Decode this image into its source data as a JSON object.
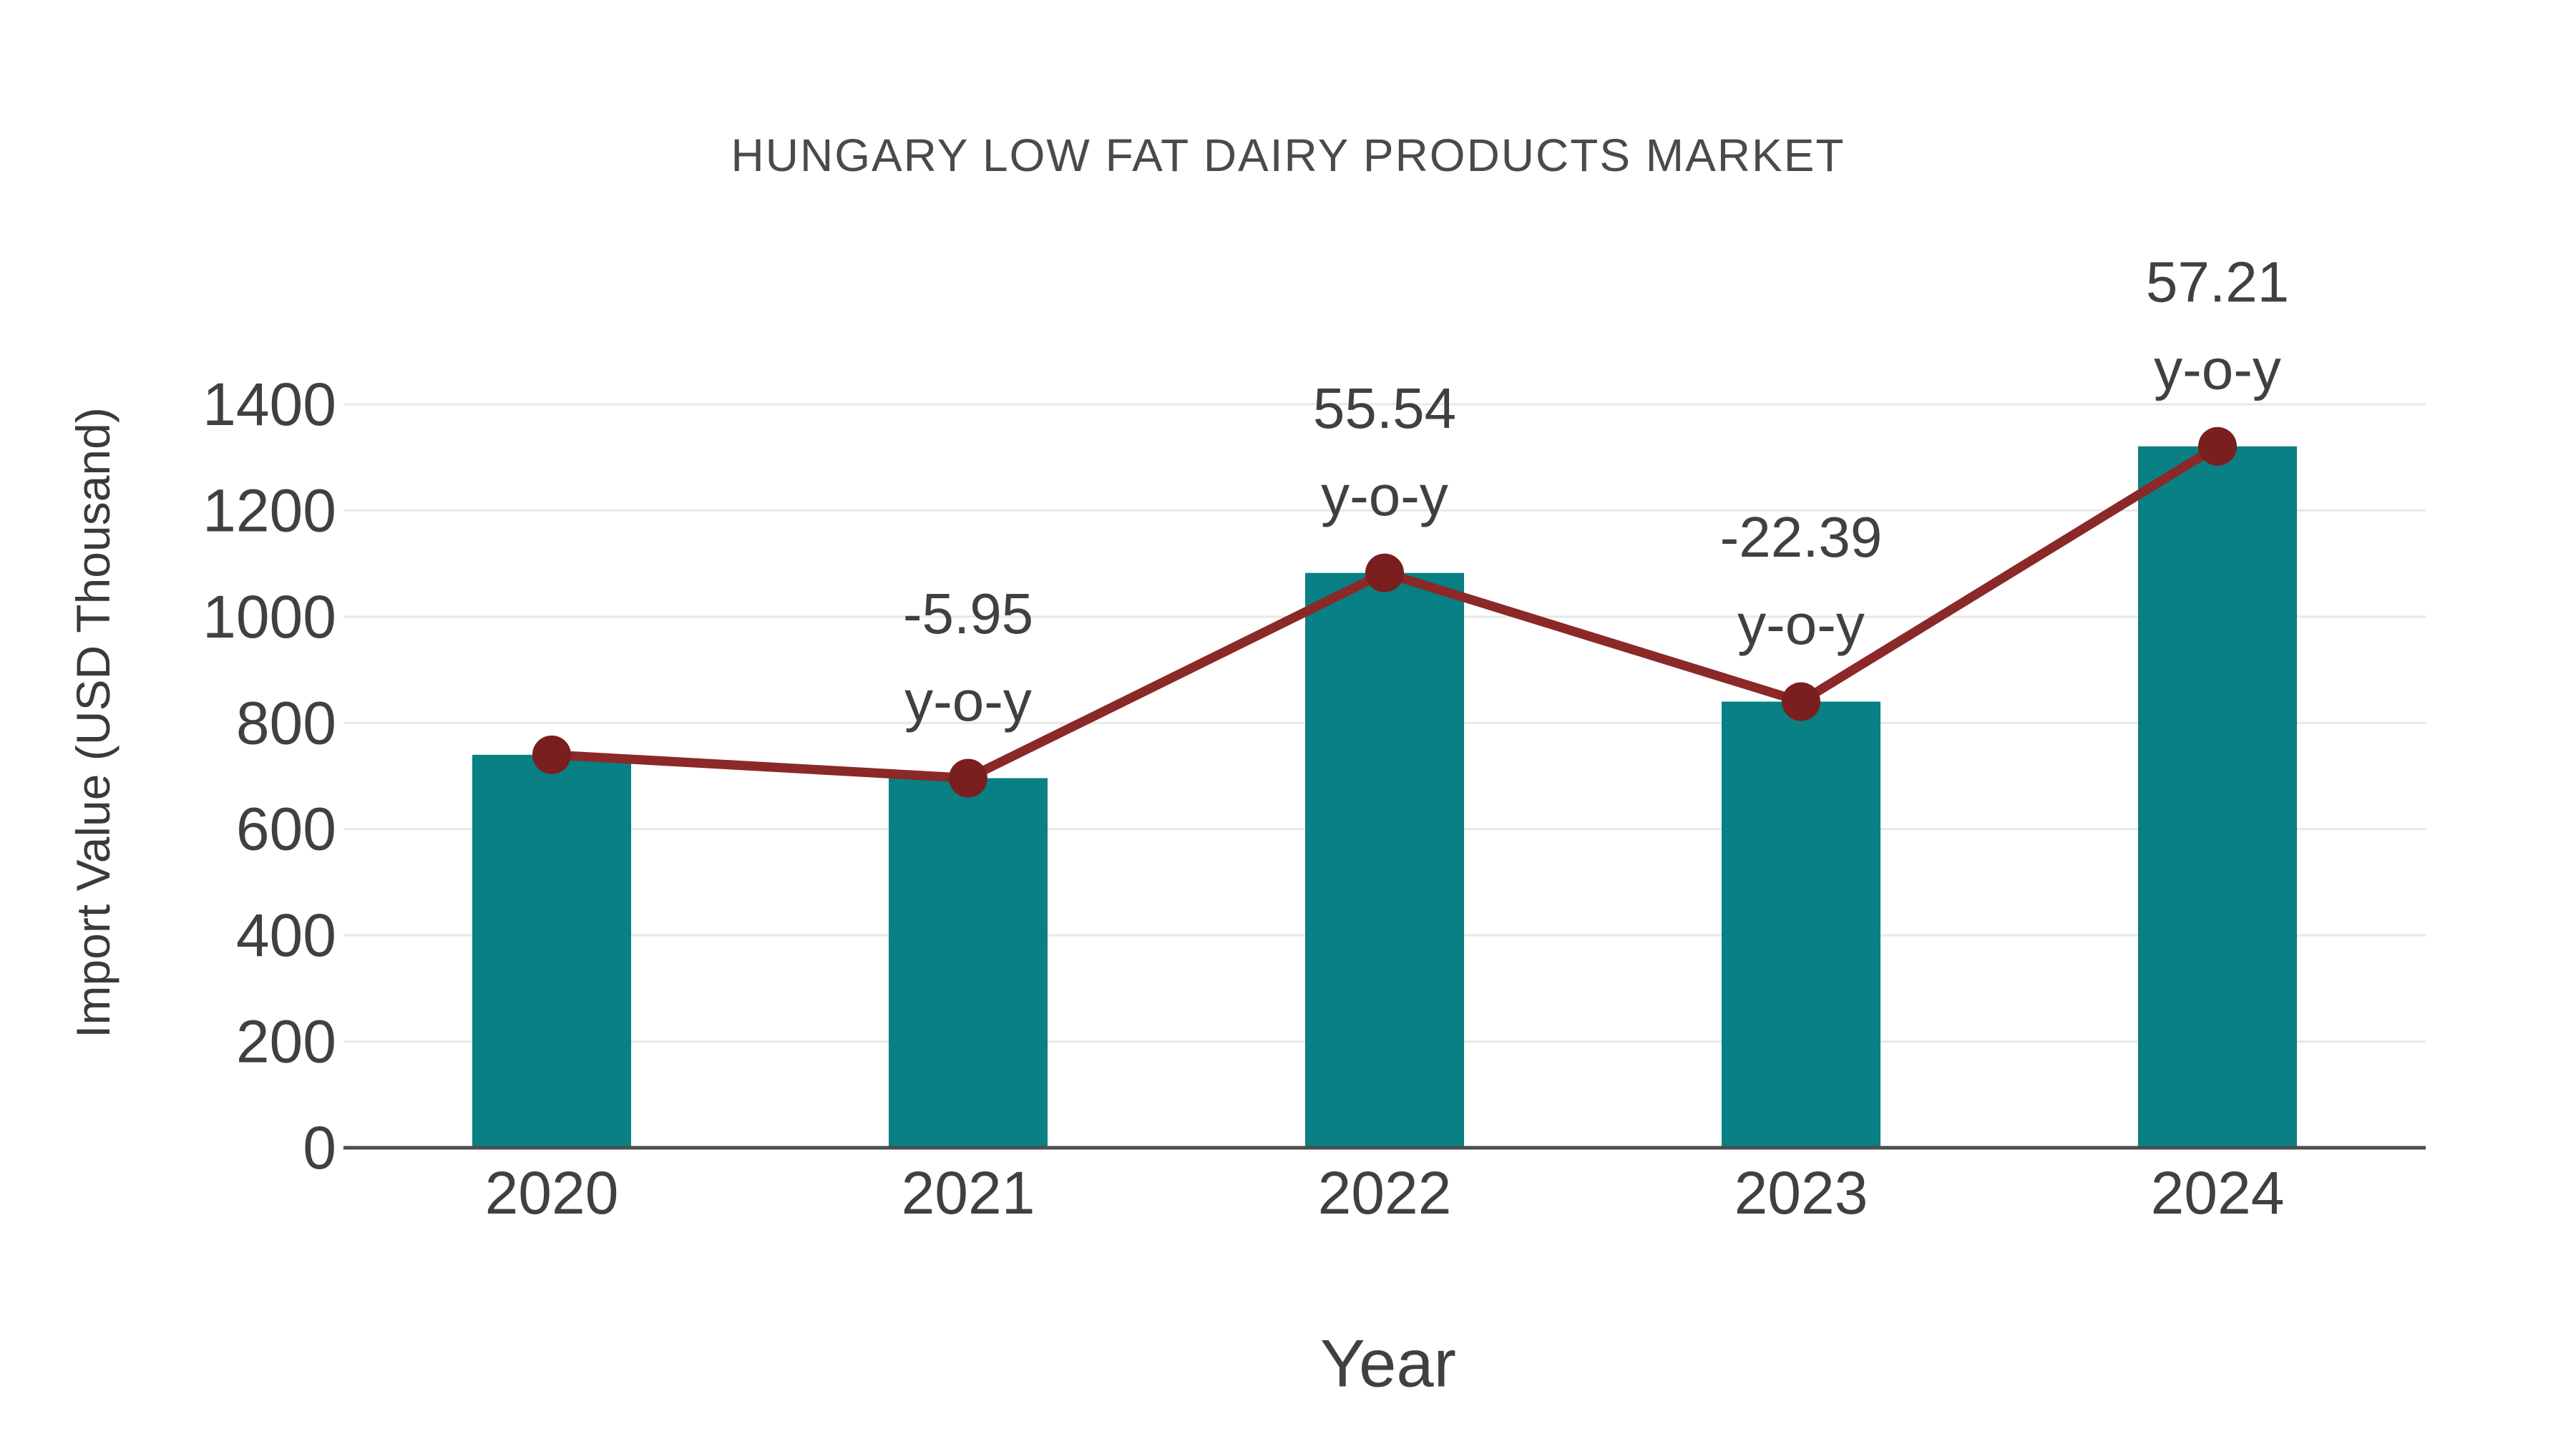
{
  "title": "HUNGARY LOW FAT DAIRY PRODUCTS MARKET",
  "colors": {
    "bar": "#088084",
    "line": "#8b2828",
    "marker": "#7a1e1e",
    "grid": "#e8e8e8",
    "axis": "#4d4d4d",
    "text": "#404040",
    "title": "#4a4a4a"
  },
  "chart_data": {
    "type": "bar",
    "title": "HUNGARY LOW FAT DAIRY PRODUCTS MARKET",
    "xlabel": "Year",
    "ylabel": "Import Value (USD Thousand)",
    "categories": [
      "2020",
      "2021",
      "2022",
      "2023",
      "2024"
    ],
    "series": [
      {
        "name": "Import Value (USD Thousand)",
        "type": "bar",
        "values": [
          740,
          696,
          1082.5,
          840.1,
          1320.8
        ]
      },
      {
        "name": "y-o-y growth (%)",
        "type": "line",
        "values": [
          740,
          696,
          1082.5,
          840.1,
          1320.8
        ],
        "point_labels": [
          null,
          "-5.95",
          "55.54",
          "-22.39",
          "57.21"
        ],
        "point_label_suffix": "y-o-y"
      }
    ],
    "ylim": [
      0,
      1400
    ],
    "yticks": [
      0,
      200,
      400,
      600,
      800,
      1000,
      1200,
      1400
    ],
    "grid": "horizontal",
    "legend": false
  }
}
